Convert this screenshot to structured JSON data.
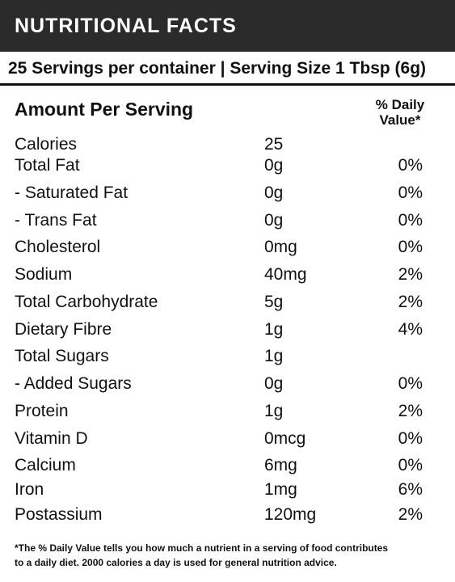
{
  "header": {
    "title": "NUTRITIONAL FACTS"
  },
  "serving": {
    "line": "25 Servings per container | Serving Size 1 Tbsp (6g)"
  },
  "table": {
    "amount_heading": "Amount Per Serving",
    "dv_heading_line1": "% Daily",
    "dv_heading_line2": "Value*",
    "rows": [
      {
        "name": "Calories",
        "amount": "25",
        "dv": ""
      },
      {
        "name": "Total Fat",
        "amount": "0g",
        "dv": "0%"
      },
      {
        "name": "- Saturated Fat",
        "amount": "0g",
        "dv": "0%"
      },
      {
        "name": "- Trans Fat",
        "amount": "0g",
        "dv": "0%"
      },
      {
        "name": "Cholesterol",
        "amount": "0mg",
        "dv": "0%"
      },
      {
        "name": "Sodium",
        "amount": "40mg",
        "dv": "2%"
      },
      {
        "name": "Total Carbohydrate",
        "amount": "5g",
        "dv": "2%"
      },
      {
        "name": "Dietary Fibre",
        "amount": "1g",
        "dv": "4%"
      },
      {
        "name": "Total Sugars",
        "amount": "1g",
        "dv": ""
      },
      {
        "name": "- Added Sugars",
        "amount": "0g",
        "dv": "0%"
      },
      {
        "name": "Protein",
        "amount": "1g",
        "dv": "2%"
      },
      {
        "name": "Vitamin D",
        "amount": "0mcg",
        "dv": "0%"
      },
      {
        "name": "Calcium",
        "amount": "6mg",
        "dv": "0%"
      },
      {
        "name": "Iron",
        "amount": "1mg",
        "dv": "6%"
      },
      {
        "name": "Postassium",
        "amount": "120mg",
        "dv": "2%"
      }
    ]
  },
  "footnote": {
    "line1": "*The % Daily Value tells you how much a nutrient in a serving of food contributes",
    "line2": "to a daily diet. 2000 calories a day is used for general nutrition advice."
  },
  "colors": {
    "header_bg": "#2b2b2b",
    "text": "#111111"
  }
}
